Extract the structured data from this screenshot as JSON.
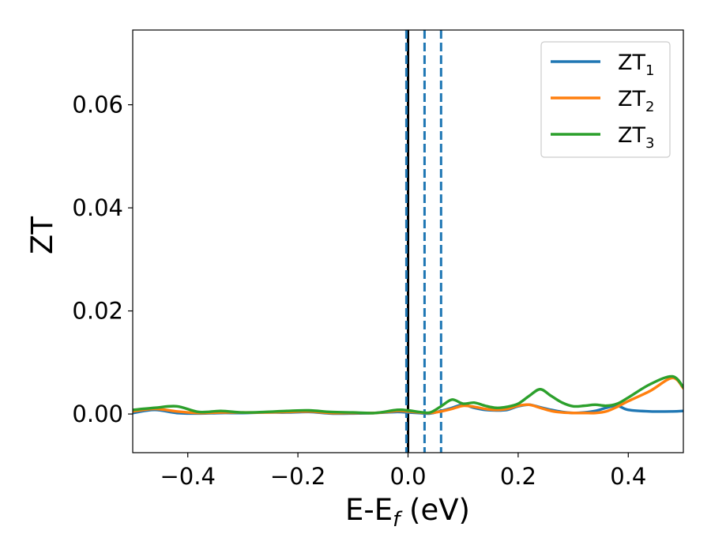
{
  "chart_data": {
    "type": "line",
    "title": "",
    "xlabel_main": "E-E",
    "xlabel_sub": "f",
    "xlabel_unit": " (eV)",
    "ylabel": "ZT",
    "xlim": [
      -0.5,
      0.5
    ],
    "ylim": [
      -0.0075,
      0.0745
    ],
    "grid": false,
    "legend_position": "top-right",
    "x_ticks": [
      -0.4,
      -0.2,
      0.0,
      0.2,
      0.4
    ],
    "x_tick_labels": [
      "−0.4",
      "−0.2",
      "0.0",
      "0.2",
      "0.4"
    ],
    "y_ticks": [
      0.0,
      0.02,
      0.04,
      0.06
    ],
    "y_tick_labels": [
      "0.00",
      "0.02",
      "0.04",
      "0.06"
    ],
    "vlines": [
      {
        "x": 0.0,
        "color": "#000000",
        "style": "solid"
      },
      {
        "x": -0.003,
        "color": "#1f77b4",
        "style": "dashed"
      },
      {
        "x": 0.03,
        "color": "#1f77b4",
        "style": "dashed"
      },
      {
        "x": 0.06,
        "color": "#1f77b4",
        "style": "dashed"
      }
    ],
    "series": [
      {
        "name": "ZT",
        "name_sub": "1",
        "color": "#1f77b4",
        "x": [
          -0.5,
          -0.46,
          -0.42,
          -0.38,
          -0.34,
          -0.3,
          -0.26,
          -0.22,
          -0.18,
          -0.14,
          -0.1,
          -0.06,
          -0.02,
          0.0,
          0.02,
          0.04,
          0.06,
          0.08,
          0.1,
          0.12,
          0.14,
          0.16,
          0.18,
          0.2,
          0.22,
          0.24,
          0.26,
          0.28,
          0.3,
          0.32,
          0.34,
          0.36,
          0.38,
          0.4,
          0.44,
          0.48,
          0.5
        ],
        "y": [
          0.0002,
          0.0008,
          0.0002,
          0.0001,
          0.0002,
          0.0002,
          0.0003,
          0.0003,
          0.0004,
          0.0001,
          0.0001,
          0.0002,
          0.0004,
          0.0003,
          0.0002,
          0.0001,
          0.0006,
          0.0012,
          0.0018,
          0.0012,
          0.0008,
          0.0007,
          0.0008,
          0.0015,
          0.0018,
          0.0013,
          0.0008,
          0.0004,
          0.0002,
          0.0003,
          0.0006,
          0.0012,
          0.0016,
          0.0008,
          0.0005,
          0.0005,
          0.0006
        ]
      },
      {
        "name": "ZT",
        "name_sub": "2",
        "color": "#ff7f0e",
        "x": [
          -0.5,
          -0.46,
          -0.42,
          -0.38,
          -0.34,
          -0.3,
          -0.26,
          -0.22,
          -0.18,
          -0.14,
          -0.1,
          -0.06,
          -0.02,
          0.0,
          0.02,
          0.04,
          0.06,
          0.08,
          0.1,
          0.12,
          0.14,
          0.16,
          0.18,
          0.2,
          0.22,
          0.24,
          0.26,
          0.28,
          0.3,
          0.32,
          0.34,
          0.36,
          0.38,
          0.4,
          0.44,
          0.48,
          0.5
        ],
        "y": [
          0.0005,
          0.001,
          0.0005,
          0.0002,
          0.0003,
          0.0003,
          0.0003,
          0.0004,
          0.0005,
          0.0002,
          0.0002,
          0.0002,
          0.0006,
          0.0005,
          0.0003,
          0.0002,
          0.0005,
          0.001,
          0.0016,
          0.0014,
          0.001,
          0.0008,
          0.001,
          0.0016,
          0.0018,
          0.0012,
          0.0006,
          0.0003,
          0.0002,
          0.0002,
          0.0002,
          0.0005,
          0.0014,
          0.0025,
          0.0045,
          0.007,
          0.005
        ]
      },
      {
        "name": "ZT",
        "name_sub": "3",
        "color": "#2ca02c",
        "x": [
          -0.5,
          -0.46,
          -0.42,
          -0.38,
          -0.34,
          -0.3,
          -0.26,
          -0.22,
          -0.18,
          -0.14,
          -0.1,
          -0.06,
          -0.02,
          0.0,
          0.02,
          0.04,
          0.06,
          0.08,
          0.1,
          0.12,
          0.14,
          0.16,
          0.18,
          0.2,
          0.22,
          0.24,
          0.26,
          0.28,
          0.3,
          0.32,
          0.34,
          0.36,
          0.38,
          0.4,
          0.44,
          0.48,
          0.5
        ],
        "y": [
          0.0008,
          0.0012,
          0.0015,
          0.0004,
          0.0006,
          0.0003,
          0.0004,
          0.0006,
          0.0007,
          0.0004,
          0.0003,
          0.0002,
          0.0008,
          0.0007,
          0.0004,
          0.0003,
          0.0015,
          0.0028,
          0.002,
          0.0022,
          0.0016,
          0.0012,
          0.0014,
          0.002,
          0.0035,
          0.0048,
          0.0035,
          0.0022,
          0.0015,
          0.0016,
          0.0018,
          0.0016,
          0.002,
          0.0032,
          0.0058,
          0.0073,
          0.0052
        ]
      }
    ]
  }
}
